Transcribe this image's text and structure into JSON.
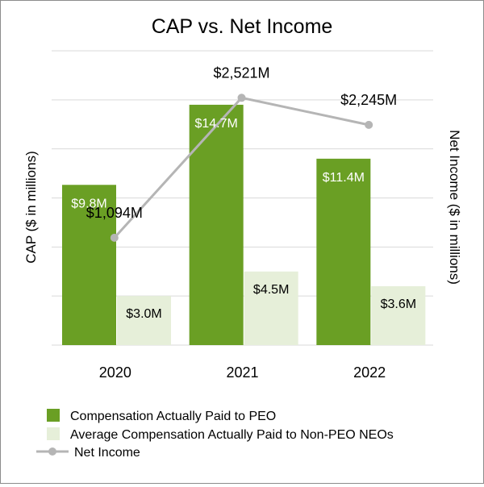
{
  "chart_data": {
    "type": "bar",
    "title": "CAP vs. Net Income",
    "categories": [
      "2020",
      "2021",
      "2022"
    ],
    "ylabel": "CAP ($ in millions)",
    "y2label": "Net Income ($ in millions)",
    "ylim": [
      0,
      18
    ],
    "y2lim": [
      0,
      3000
    ],
    "grid": true,
    "legend_position": "bottom",
    "series": [
      {
        "name": "Compensation Actually Paid to PEO",
        "kind": "bar",
        "axis": "left",
        "color": "#6a9f24",
        "values": [
          9.8,
          14.7,
          11.4
        ],
        "labels": [
          "$9.8M",
          "$14.7M",
          "$11.4M"
        ]
      },
      {
        "name": "Average Compensation Actually Paid to Non-PEO NEOs",
        "kind": "bar",
        "axis": "left",
        "color": "#e6efd9",
        "values": [
          3.0,
          4.5,
          3.6
        ],
        "labels": [
          "$3.0M",
          "$4.5M",
          "$3.6M"
        ]
      },
      {
        "name": "Net Income",
        "kind": "line",
        "axis": "right",
        "color": "#b5b5b5",
        "values": [
          1094,
          2521,
          2245
        ],
        "labels": [
          "$1,094M",
          "$2,521M",
          "$2,245M"
        ]
      }
    ]
  }
}
